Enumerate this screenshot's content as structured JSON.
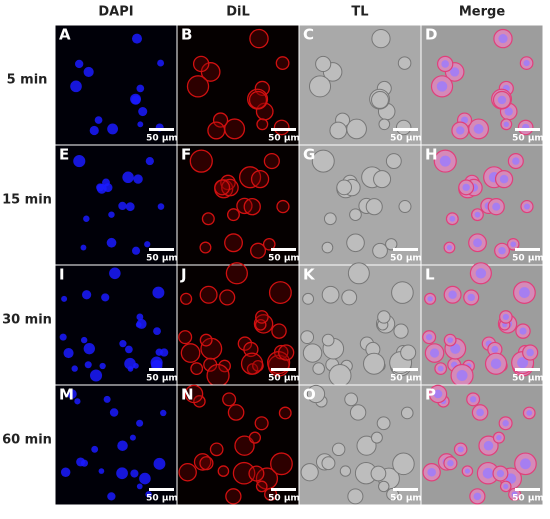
{
  "columns": [
    "DAPI",
    "DiL",
    "TL",
    "Merge"
  ],
  "rows": [
    {
      "label": "5 min",
      "panels": [
        {
          "letter": "A",
          "scale": "50 μm"
        },
        {
          "letter": "B",
          "scale": "50 μm"
        },
        {
          "letter": "C",
          "scale": "50 μm"
        },
        {
          "letter": "D",
          "scale": "50 μm"
        }
      ]
    },
    {
      "label": "15 min",
      "panels": [
        {
          "letter": "E",
          "scale": "50 μm"
        },
        {
          "letter": "F",
          "scale": "50 μm"
        },
        {
          "letter": "G",
          "scale": "50 μm"
        },
        {
          "letter": "H",
          "scale": "50 μm"
        }
      ]
    },
    {
      "label": "30 min",
      "panels": [
        {
          "letter": "I",
          "scale": "50 μm"
        },
        {
          "letter": "J",
          "scale": "50 μm"
        },
        {
          "letter": "K",
          "scale": "50 μm"
        },
        {
          "letter": "L",
          "scale": "50 μm"
        }
      ]
    },
    {
      "label": "60 min",
      "panels": [
        {
          "letter": "M",
          "scale": "50 μm"
        },
        {
          "letter": "N",
          "scale": "50 μm"
        },
        {
          "letter": "O",
          "scale": "50 μm"
        },
        {
          "letter": "P",
          "scale": "50 μm"
        }
      ]
    }
  ]
}
